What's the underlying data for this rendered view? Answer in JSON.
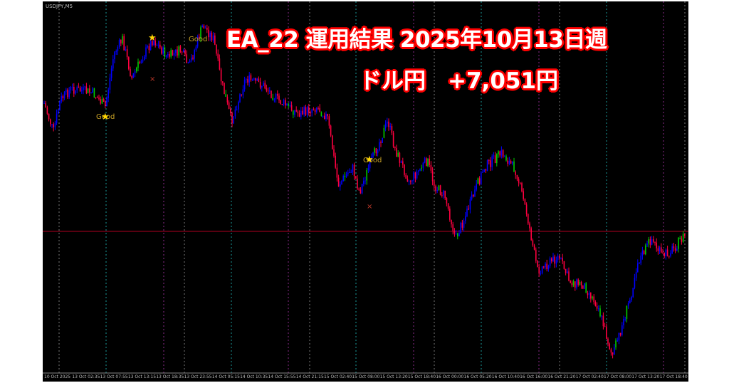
{
  "chart_window": {
    "symbol": "USDJPY,M5",
    "x_labels": [
      "10 Oct 2025",
      "13 Oct 02:35",
      "13 Oct 07:55",
      "13 Oct 13:15",
      "13 Oct 18:35",
      "13 Oct 23:55",
      "14 Oct 05:15",
      "14 Oct 10:35",
      "14 Oct 15:55",
      "14 Oct 21:15",
      "15 Oct 02:40",
      "15 Oct 08:00",
      "15 Oct 13:20",
      "15 Oct 18:40",
      "16 Oct 00:00",
      "16 Oct 05:20",
      "16 Oct 10:40",
      "16 Oct 16:00",
      "16 Oct 21:20",
      "17 Oct 02:40",
      "17 Oct 08:00",
      "17 Oct 13:20",
      "17 Oct 18:40"
    ],
    "signal_label": "Good",
    "colors": {
      "background": "#000000",
      "bull": "#0000ff",
      "bear": "#ff0040",
      "signal": "#00cc00",
      "price_line": "#b00020"
    }
  },
  "overlay": {
    "title": "EA_22  運用結果  2025年10月13日週",
    "subtitle": "ドル円　+7,051円",
    "outline_color": "#ff0000"
  }
}
